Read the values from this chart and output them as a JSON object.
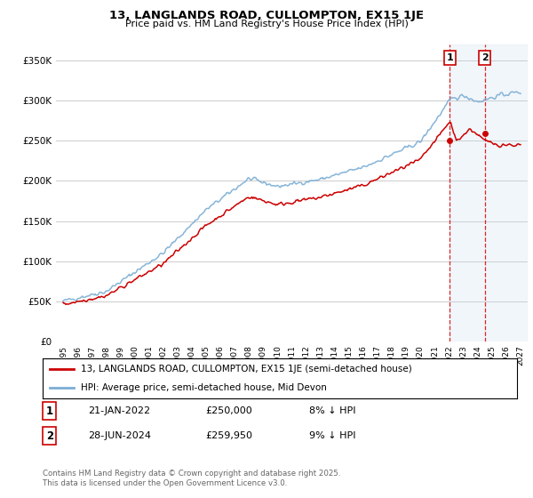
{
  "title": "13, LANGLANDS ROAD, CULLOMPTON, EX15 1JE",
  "subtitle": "Price paid vs. HM Land Registry's House Price Index (HPI)",
  "legend_label_red": "13, LANGLANDS ROAD, CULLOMPTON, EX15 1JE (semi-detached house)",
  "legend_label_blue": "HPI: Average price, semi-detached house, Mid Devon",
  "annotation1_label": "1",
  "annotation1_date": "21-JAN-2022",
  "annotation1_price": "£250,000",
  "annotation1_hpi": "8% ↓ HPI",
  "annotation2_label": "2",
  "annotation2_date": "28-JUN-2024",
  "annotation2_price": "£259,950",
  "annotation2_hpi": "9% ↓ HPI",
  "footer": "Contains HM Land Registry data © Crown copyright and database right 2025.\nThis data is licensed under the Open Government Licence v3.0.",
  "xlim_start": 1994.5,
  "xlim_end": 2027.5,
  "ylim_bottom": 0,
  "ylim_top": 370000,
  "sale1_year": 2022.05,
  "sale1_price": 250000,
  "sale2_year": 2024.5,
  "sale2_price": 259950,
  "red_color": "#cc0000",
  "blue_color": "#7aadd4",
  "bg_color": "#ffffff",
  "grid_color": "#cccccc",
  "vline_color": "#dd0000",
  "shade_color": "#c8dcee",
  "shade_start": 2022.05,
  "n_points": 500,
  "year_start": 1995.0,
  "year_end": 2027.0
}
